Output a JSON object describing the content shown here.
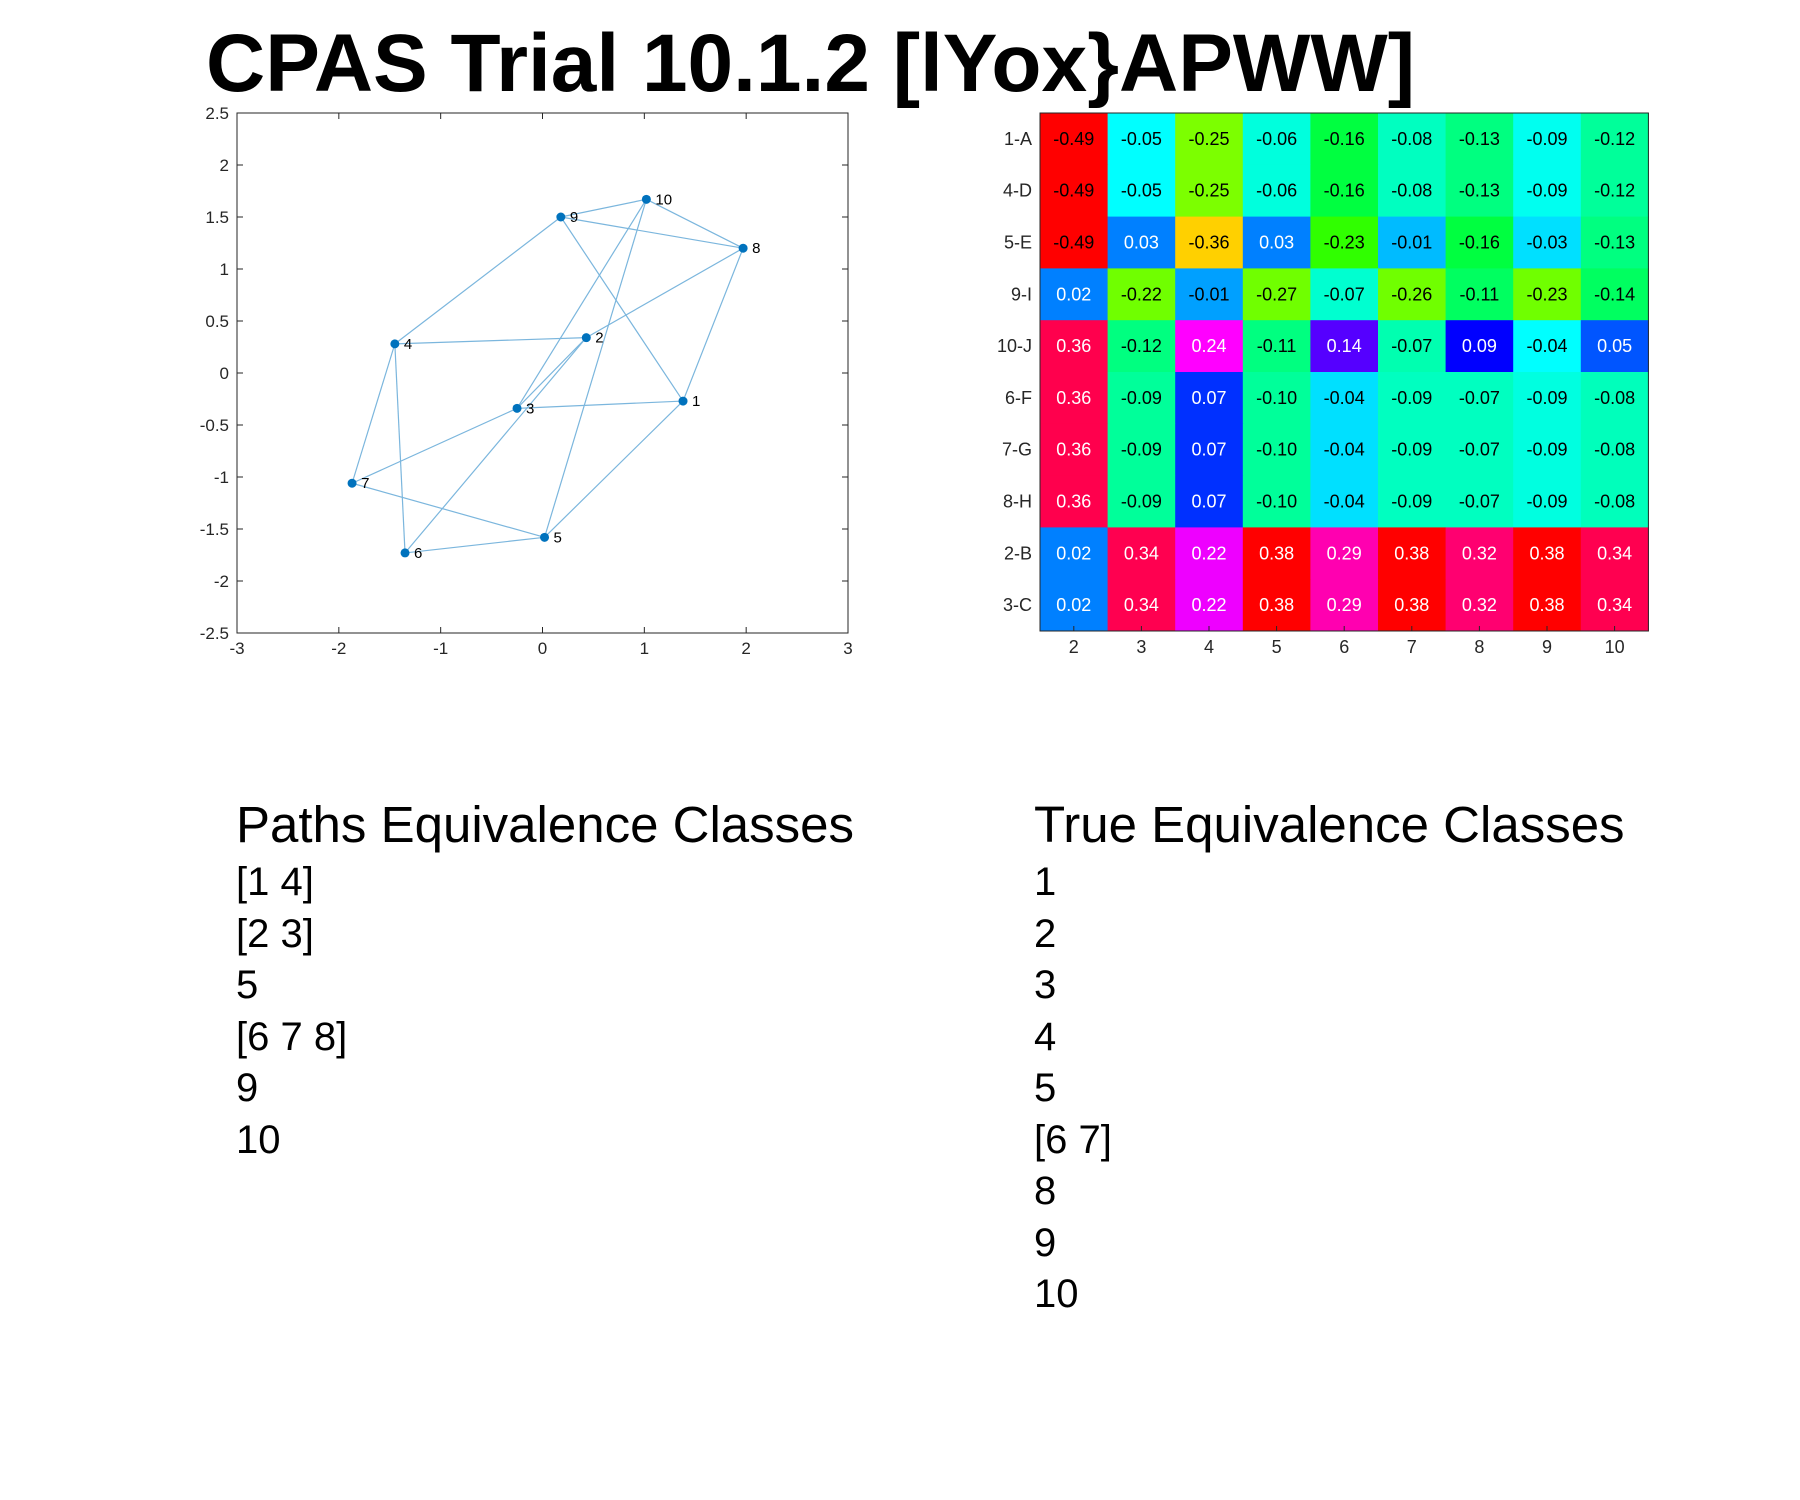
{
  "title": "CPAS Trial 10.1.2 [lYox}APWW]",
  "chart_data": [
    {
      "type": "scatter",
      "subtype": "graph",
      "xlim": [
        -3,
        3
      ],
      "ylim": [
        -2.5,
        2.5
      ],
      "xticks": [
        -3,
        -2,
        -1,
        0,
        1,
        2,
        3
      ],
      "yticks": [
        -2.5,
        -2,
        -1.5,
        -1,
        -0.5,
        0,
        0.5,
        1,
        1.5,
        2,
        2.5
      ],
      "grid": false,
      "marker_color": "#0072BD",
      "edge_color": "#7BB6DD",
      "nodes": [
        {
          "id": "1",
          "x": 1.38,
          "y": -0.27
        },
        {
          "id": "2",
          "x": 0.43,
          "y": 0.34
        },
        {
          "id": "3",
          "x": -0.25,
          "y": -0.34
        },
        {
          "id": "4",
          "x": -1.45,
          "y": 0.28
        },
        {
          "id": "5",
          "x": 0.02,
          "y": -1.58
        },
        {
          "id": "6",
          "x": -1.35,
          "y": -1.73
        },
        {
          "id": "7",
          "x": -1.87,
          "y": -1.06
        },
        {
          "id": "8",
          "x": 1.97,
          "y": 1.2
        },
        {
          "id": "9",
          "x": 0.18,
          "y": 1.5
        },
        {
          "id": "10",
          "x": 1.02,
          "y": 1.67
        }
      ],
      "edges": [
        [
          "4",
          "9"
        ],
        [
          "4",
          "2"
        ],
        [
          "4",
          "7"
        ],
        [
          "4",
          "6"
        ],
        [
          "9",
          "10"
        ],
        [
          "9",
          "8"
        ],
        [
          "9",
          "1"
        ],
        [
          "10",
          "8"
        ],
        [
          "10",
          "3"
        ],
        [
          "10",
          "5"
        ],
        [
          "8",
          "2"
        ],
        [
          "8",
          "1"
        ],
        [
          "2",
          "3"
        ],
        [
          "2",
          "6"
        ],
        [
          "3",
          "1"
        ],
        [
          "3",
          "7"
        ],
        [
          "1",
          "5"
        ],
        [
          "5",
          "7"
        ],
        [
          "5",
          "6"
        ]
      ]
    },
    {
      "type": "heatmap",
      "columns": [
        "2",
        "3",
        "4",
        "5",
        "6",
        "7",
        "8",
        "9",
        "10"
      ],
      "rows": [
        {
          "label": "1-A",
          "values": [
            "-0.49",
            "-0.05",
            "-0.25",
            "-0.06",
            "-0.16",
            "-0.08",
            "-0.13",
            "-0.09",
            "-0.12"
          ]
        },
        {
          "label": "4-D",
          "values": [
            "-0.49",
            "-0.05",
            "-0.25",
            "-0.06",
            "-0.16",
            "-0.08",
            "-0.13",
            "-0.09",
            "-0.12"
          ]
        },
        {
          "label": "5-E",
          "values": [
            "-0.49",
            "0.03",
            "-0.36",
            "0.03",
            "-0.23",
            "-0.01",
            "-0.16",
            "-0.03",
            "-0.13"
          ]
        },
        {
          "label": "9-I",
          "values": [
            "0.02",
            "-0.22",
            "-0.01",
            "-0.27",
            "-0.07",
            "-0.26",
            "-0.11",
            "-0.23",
            "-0.14"
          ]
        },
        {
          "label": "10-J",
          "values": [
            "0.36",
            "-0.12",
            "0.24",
            "-0.11",
            "0.14",
            "-0.07",
            "0.09",
            "-0.04",
            "0.05"
          ]
        },
        {
          "label": "6-F",
          "values": [
            "0.36",
            "-0.09",
            "0.07",
            "-0.10",
            "-0.04",
            "-0.09",
            "-0.07",
            "-0.09",
            "-0.08"
          ]
        },
        {
          "label": "7-G",
          "values": [
            "0.36",
            "-0.09",
            "0.07",
            "-0.10",
            "-0.04",
            "-0.09",
            "-0.07",
            "-0.09",
            "-0.08"
          ]
        },
        {
          "label": "8-H",
          "values": [
            "0.36",
            "-0.09",
            "0.07",
            "-0.10",
            "-0.04",
            "-0.09",
            "-0.07",
            "-0.09",
            "-0.08"
          ]
        },
        {
          "label": "2-B",
          "values": [
            "0.02",
            "0.34",
            "0.22",
            "0.38",
            "0.29",
            "0.38",
            "0.32",
            "0.38",
            "0.34"
          ]
        },
        {
          "label": "3-C",
          "values": [
            "0.02",
            "0.34",
            "0.22",
            "0.38",
            "0.29",
            "0.38",
            "0.32",
            "0.38",
            "0.34"
          ]
        }
      ],
      "colors": [
        [
          "#FF0000",
          "#00FFFF",
          "#7CFF00",
          "#00FFDD",
          "#00FF40",
          "#00FFC0",
          "#00FF80",
          "#00FFF0",
          "#00FF9A"
        ],
        [
          "#FF0000",
          "#00FFFF",
          "#7CFF00",
          "#00FFDD",
          "#00FF40",
          "#00FFC0",
          "#00FF80",
          "#00FFF0",
          "#00FF9A"
        ],
        [
          "#FF0000",
          "#0080FF",
          "#FFD000",
          "#0080FF",
          "#30FF00",
          "#00BBFF",
          "#00FF40",
          "#00E0FF",
          "#00FF80"
        ],
        [
          "#0080FF",
          "#70FF00",
          "#00A0FF",
          "#70FF00",
          "#00FFD0",
          "#70FF00",
          "#00FF60",
          "#70FF00",
          "#00FF60"
        ],
        [
          "#FF004D",
          "#00FF80",
          "#FF00FF",
          "#00FF80",
          "#5500FF",
          "#00FFB0",
          "#0000FF",
          "#00FFFF",
          "#0055FF"
        ],
        [
          "#FF004D",
          "#00FF9A",
          "#0030FF",
          "#00FF9A",
          "#00E0FF",
          "#00FFC0",
          "#00FFC0",
          "#00FFE0",
          "#00FFBB"
        ],
        [
          "#FF004D",
          "#00FF9A",
          "#0030FF",
          "#00FF9A",
          "#00E0FF",
          "#00FFC0",
          "#00FFC0",
          "#00FFE0",
          "#00FFBB"
        ],
        [
          "#FF004D",
          "#00FF9A",
          "#0030FF",
          "#00FF9A",
          "#00E0FF",
          "#00FFC0",
          "#00FFC0",
          "#00FFE0",
          "#00FFBB"
        ],
        [
          "#0080FF",
          "#FF0050",
          "#EE00FF",
          "#FF0000",
          "#FF00B0",
          "#FF0000",
          "#FF0070",
          "#FF0000",
          "#FF0050"
        ],
        [
          "#0080FF",
          "#FF0050",
          "#EE00FF",
          "#FF0000",
          "#FF00B0",
          "#FF0000",
          "#FF0070",
          "#FF0000",
          "#FF0050"
        ]
      ],
      "light_text_values": [
        "0.02",
        "0.03",
        "0.36",
        "0.24",
        "0.14",
        "0.09",
        "0.05",
        "0.07",
        "0.34",
        "0.22",
        "0.38",
        "0.29",
        "0.32"
      ]
    }
  ],
  "paths_equivalence": {
    "heading": "Paths Equivalence Classes",
    "items": [
      "[1 4]",
      "[2 3]",
      "5",
      "[6 7 8]",
      "9",
      "10"
    ]
  },
  "true_equivalence": {
    "heading": "True Equivalence Classes",
    "items": [
      "1",
      "2",
      "3",
      "4",
      "5",
      "[6 7]",
      "8",
      "9",
      "10"
    ]
  }
}
